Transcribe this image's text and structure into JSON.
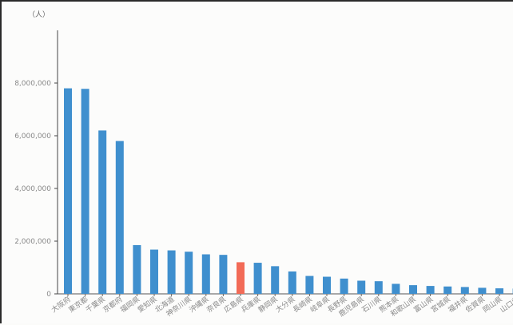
{
  "chart_data": {
    "type": "bar",
    "y_unit_label": "（人）",
    "categories": [
      "大阪府",
      "東京都",
      "千葉県",
      "京都府",
      "福岡県",
      "愛知県",
      "北海道",
      "神奈川県",
      "沖縄県",
      "奈良県",
      "広島県",
      "兵庫県",
      "静岡県",
      "大分県",
      "長崎県",
      "岐阜県",
      "長野県",
      "鹿児島県",
      "石川県",
      "熊本県",
      "和歌山県",
      "富山県",
      "宮城県",
      "福井県",
      "佐賀県",
      "岡山県",
      "山口県"
    ],
    "values": [
      7800000,
      7780000,
      6200000,
      5800000,
      1850000,
      1680000,
      1650000,
      1600000,
      1500000,
      1480000,
      1200000,
      1180000,
      1050000,
      850000,
      680000,
      650000,
      580000,
      500000,
      480000,
      380000,
      330000,
      300000,
      280000,
      260000,
      230000,
      210000,
      200000
    ],
    "highlight_index": 10,
    "colors": {
      "bar": "#3f8fce",
      "highlight": "#f26b57",
      "axis": "#444444"
    },
    "ylim": [
      0,
      10000000
    ],
    "yticks": [
      0,
      2000000,
      4000000,
      6000000,
      8000000
    ],
    "ytick_labels": [
      "0",
      "2,000,000",
      "4,000,000",
      "6,000,000",
      "8,000,000"
    ],
    "grid": false,
    "title": "",
    "xlabel": "",
    "ylabel": ""
  }
}
